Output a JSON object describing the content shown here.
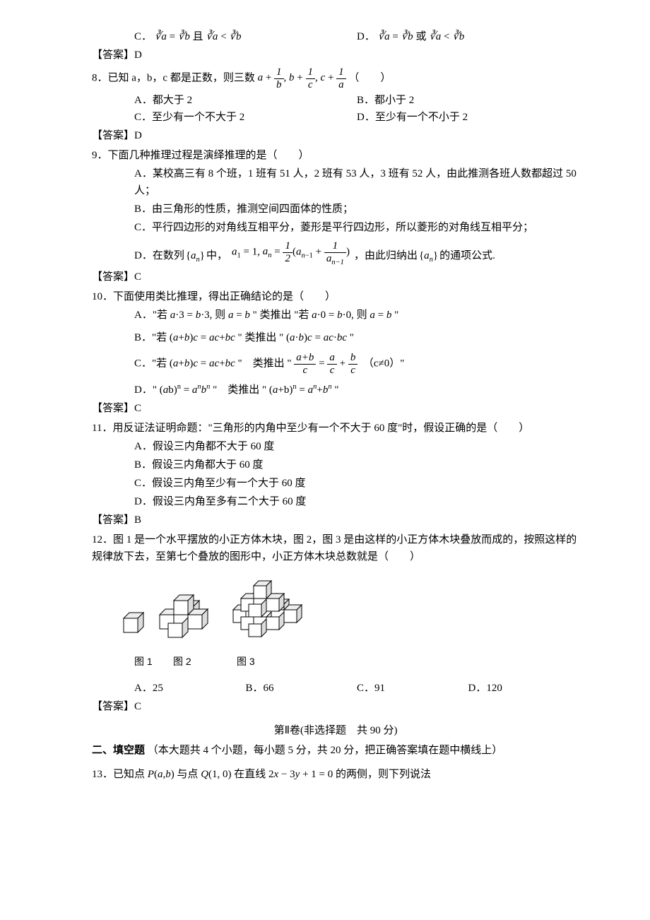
{
  "q7": {
    "optC_prefix": "C．",
    "optC_math": "<span class='math'>∛a</span> = <span class='math'>∛b</span> 且 <span class='math'>∛a</span> &lt; <span class='math'>∛b</span>",
    "optD_prefix": "D．",
    "optD_math": "<span class='math'>∛a</span> = <span class='math'>∛b</span> 或 <span class='math'>∛a</span> &lt; <span class='math'>∛b</span>",
    "answer_label": "【答案】D"
  },
  "q8": {
    "stem": "8．已知 a，b，c 都是正数，则三数 ",
    "math": "<span class='math'>a</span> + <span class='frac'><span class='num'>1</span><span class='den'><span class='math'>b</span></span></span>, <span class='math'>b</span> + <span class='frac'><span class='num'>1</span><span class='den'><span class='math'>c</span></span></span>, <span class='math'>c</span> + <span class='frac'><span class='num'>1</span><span class='den'><span class='math'>a</span></span></span>",
    "tail": "（　　）",
    "optA": "A．都大于 2",
    "optB": "B．都小于 2",
    "optC": "C．至少有一个不大于 2",
    "optD": "D．至少有一个不小于 2",
    "answer_label": "【答案】D"
  },
  "q9": {
    "stem": "9．下面几种推理过程是演绎推理的是（　　）",
    "optA": "A．某校高三有 8 个班，1 班有 51 人，2 班有 53 人，3 班有 52 人，由此推测各班人数都超过 50 人；",
    "optB": "B．由三角形的性质，推测空间四面体的性质；",
    "optC": "C．平行四边形的对角线互相平分，菱形是平行四边形，所以菱形的对角线互相平分；",
    "optD_prefix": "D．在数列",
    "optD_set": "{<span class='math'>a<sub>n</sub></span>}",
    "optD_mid": "中，",
    "optD_math": "<span class='math'>a</span><sub>1</sub> = 1, <span class='math'>a<sub>n</sub></span> = <span class='frac'><span class='num'>1</span><span class='den'>2</span></span>(<span class='math'>a</span><sub><span class='math'>n</span>−1</sub> + <span class='frac'><span class='num'>1</span><span class='den'><span class='math'>a</span><sub><span class='math'>n</span>−1</sub></span></span>)",
    "optD_tail": "，由此归纳出",
    "optD_set2": "{<span class='math'>a<sub>n</sub></span>}",
    "optD_tail2": "的通项公式.",
    "answer_label": "【答案】C"
  },
  "q10": {
    "stem": "10．下面使用类比推理，得出正确结论的是（　　）",
    "optA": "A．\"若 <span class='math'>a</span>·3 = <span class='math'>b</span>·3, 则 <span class='math'>a</span> = <span class='math'>b</span> \" 类推出 \"若 <span class='math'>a</span>·0 = <span class='math'>b</span>·0, 则 <span class='math'>a</span> = <span class='math'>b</span> \"",
    "optB": "B．\"若 (<span class='math'>a</span>+<span class='math'>b</span>)<span class='math'>c</span> = <span class='math'>ac</span>+<span class='math'>bc</span> \" 类推出 \" (<span class='math'>a</span>·<span class='math'>b</span>)<span class='math'>c</span> = <span class='math'>ac</span>·<span class='math'>bc</span> \"",
    "optC": "C．\"若 (<span class='math'>a</span>+<span class='math'>b</span>)<span class='math'>c</span> = <span class='math'>ac</span>+<span class='math'>bc</span> \"　类推出 \" <span class='frac'><span class='num'><span class='math'>a</span>+<span class='math'>b</span></span><span class='den'><span class='math'>c</span></span></span> = <span class='frac'><span class='num'><span class='math'>a</span></span><span class='den'><span class='math'>c</span></span></span> + <span class='frac'><span class='num'><span class='math'>b</span></span><span class='den'><span class='math'>c</span></span></span>　（c≠0）\"",
    "optD": "D．\" (<span class='math'>a</span>b)<sup>n</sup> = <span class='math'>a<sup>n</sup>b<sup>n</sup></span> \"　类推出 \" (<span class='math'>a</span>+b)<sup>n</sup> = <span class='math'>a<sup>n</sup></span>+<span class='math'>b<sup>n</sup></span> \"",
    "answer_label": "【答案】C"
  },
  "q11": {
    "stem": "11．用反证法证明命题：\"三角形的内角中至少有一个不大于 60 度\"时，假设正确的是（　　）",
    "optA": "A．假设三内角都不大于 60 度",
    "optB": "B．假设三内角都大于 60 度",
    "optC": "C．假设三内角至少有一个大于 60 度",
    "optD": "D．假设三内角至多有二个大于 60 度",
    "answer_label": "【答案】B"
  },
  "q12": {
    "stem": "12．图 1 是一个水平摆放的小正方体木块，图 2，图 3 是由这样的小正方体木块叠放而成的，按照这样的规律放下去，至第七个叠放的图形中，小正方体木块总数就是（　　）",
    "optA": "A．25",
    "optB": "B．66",
    "optC": "C．91",
    "optD": "D．120",
    "fig1_label": "图 1",
    "fig2_label": "图 2",
    "fig3_label": "图 3",
    "answer_label": "【答案】C"
  },
  "section2": {
    "header": "第Ⅱ卷(非选择题　共 90 分)",
    "fill_title": "二、填空题",
    "fill_desc": "（本大题共 4 个小题，每小题 5 分，共 20 分，把正确答案填在题中横线上）"
  },
  "q13": {
    "stem": "13．已知点 <span class='math'>P</span>(<span class='math'>a</span>,<span class='math'>b</span>) 与点 <span class='math'>Q</span>(1, 0) 在直线 2<span class='math'>x</span> − 3<span class='math'>y</span> + 1 = 0 的两侧，则下列说法"
  }
}
